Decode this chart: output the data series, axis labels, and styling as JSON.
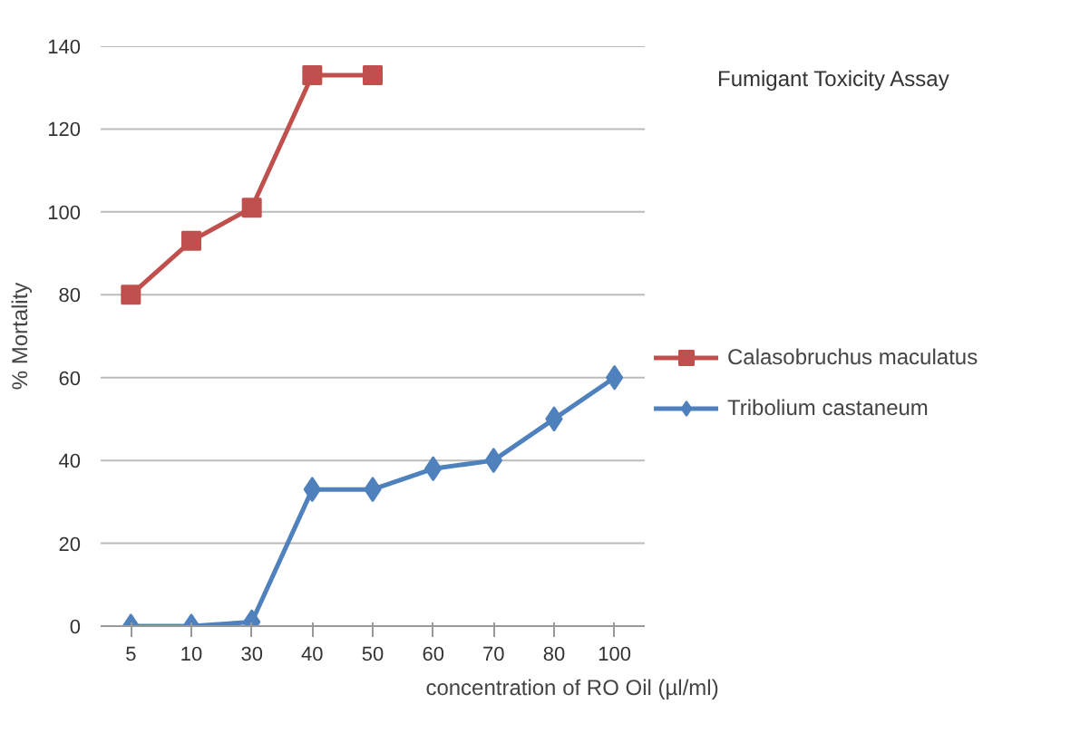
{
  "chart_data": {
    "type": "line",
    "title": "Fumigant Toxicity Assay",
    "xlabel": "concentration of RO Oil (µl/ml)",
    "ylabel": "% Mortality",
    "categories": [
      "5",
      "10",
      "30",
      "40",
      "50",
      "60",
      "70",
      "80",
      "100"
    ],
    "series": [
      {
        "name": "Calasobruchus maculatus",
        "color": "#c0504d",
        "marker": "square",
        "values": [
          80,
          93,
          101,
          133,
          133,
          null,
          null,
          null,
          null
        ]
      },
      {
        "name": "Tribolium castaneum",
        "color": "#4f81bd",
        "marker": "diamond",
        "values": [
          0,
          0,
          1,
          33,
          33,
          38,
          40,
          50,
          60
        ]
      }
    ],
    "ylim": [
      0,
      140
    ],
    "yticks": [
      0,
      20,
      40,
      60,
      80,
      100,
      120,
      140
    ],
    "grid": "y",
    "legend": "right"
  }
}
